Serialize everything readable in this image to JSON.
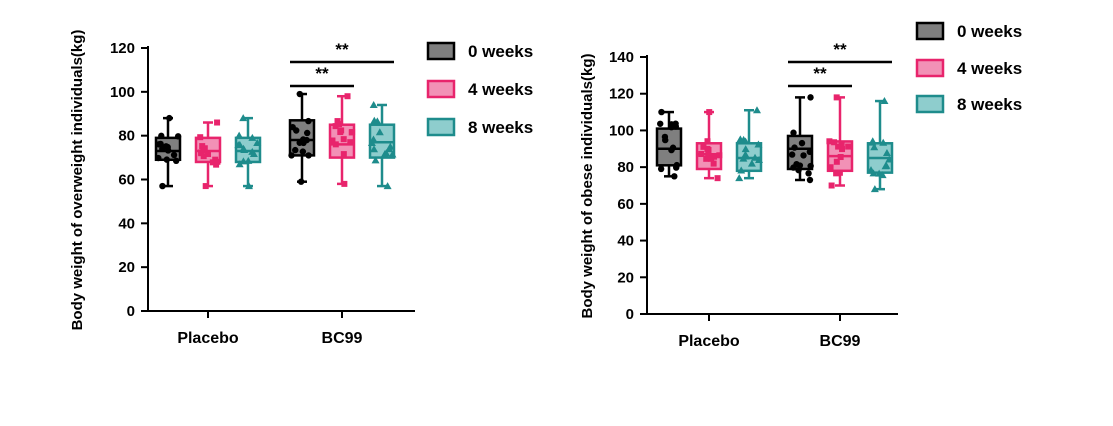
{
  "chart_data": [
    {
      "type": "box",
      "title": "",
      "xlabel": "",
      "ylabel": "Body weight of overweight individuals(kg)",
      "ylim": [
        0,
        120
      ],
      "yticks": [
        0,
        20,
        40,
        60,
        80,
        100,
        120
      ],
      "categories": [
        "Placebo",
        "BC99"
      ],
      "series": [
        {
          "name": "0 weeks",
          "color": "#000000",
          "fill": "#7f7f7f",
          "points": "circle",
          "boxes": [
            {
              "min": 57,
              "q1": 69,
              "median": 73,
              "q3": 79,
              "max": 88
            },
            {
              "min": 59,
              "q1": 71,
              "median": 78,
              "q3": 87,
              "max": 99
            }
          ]
        },
        {
          "name": "4 weeks",
          "color": "#e8246c",
          "fill": "#f291b6",
          "points": "square",
          "boxes": [
            {
              "min": 57,
              "q1": 68,
              "median": 73,
              "q3": 79,
              "max": 86
            },
            {
              "min": 58,
              "q1": 70,
              "median": 76,
              "q3": 85,
              "max": 98
            }
          ]
        },
        {
          "name": "8 weeks",
          "color": "#1e8c8c",
          "fill": "#8ecdcd",
          "points": "triangle",
          "boxes": [
            {
              "min": 57,
              "q1": 68,
              "median": 73,
              "q3": 79,
              "max": 88
            },
            {
              "min": 57,
              "q1": 70,
              "median": 77,
              "q3": 85,
              "max": 94
            }
          ]
        }
      ],
      "significance": [
        {
          "category": "BC99",
          "from": "0 weeks",
          "to": "4 weeks",
          "label": "**"
        },
        {
          "category": "BC99",
          "from": "0 weeks",
          "to": "8 weeks",
          "label": "**"
        }
      ],
      "legend": "top-right"
    },
    {
      "type": "box",
      "title": "",
      "xlabel": "",
      "ylabel": "Body weight of obese individuals(kg)",
      "ylim": [
        0,
        140
      ],
      "yticks": [
        0,
        20,
        40,
        60,
        80,
        100,
        120,
        140
      ],
      "categories": [
        "Placebo",
        "BC99"
      ],
      "series": [
        {
          "name": "0 weeks",
          "color": "#000000",
          "fill": "#7f7f7f",
          "points": "circle",
          "boxes": [
            {
              "min": 75,
              "q1": 81,
              "median": 90,
              "q3": 101,
              "max": 110
            },
            {
              "min": 73,
              "q1": 79,
              "median": 90,
              "q3": 97,
              "max": 118
            }
          ]
        },
        {
          "name": "4 weeks",
          "color": "#e8246c",
          "fill": "#f291b6",
          "points": "square",
          "boxes": [
            {
              "min": 74,
              "q1": 79,
              "median": 87,
              "q3": 93,
              "max": 110
            },
            {
              "min": 70,
              "q1": 78,
              "median": 86,
              "q3": 94,
              "max": 118
            }
          ]
        },
        {
          "name": "8 weeks",
          "color": "#1e8c8c",
          "fill": "#8ecdcd",
          "points": "triangle",
          "boxes": [
            {
              "min": 74,
              "q1": 78,
              "median": 85,
              "q3": 93,
              "max": 111
            },
            {
              "min": 68,
              "q1": 77,
              "median": 85,
              "q3": 93,
              "max": 116
            }
          ]
        }
      ],
      "significance": [
        {
          "category": "BC99",
          "from": "0 weeks",
          "to": "4 weeks",
          "label": "**"
        },
        {
          "category": "BC99",
          "from": "0 weeks",
          "to": "8 weeks",
          "label": "**"
        }
      ],
      "legend": "top-right"
    }
  ]
}
